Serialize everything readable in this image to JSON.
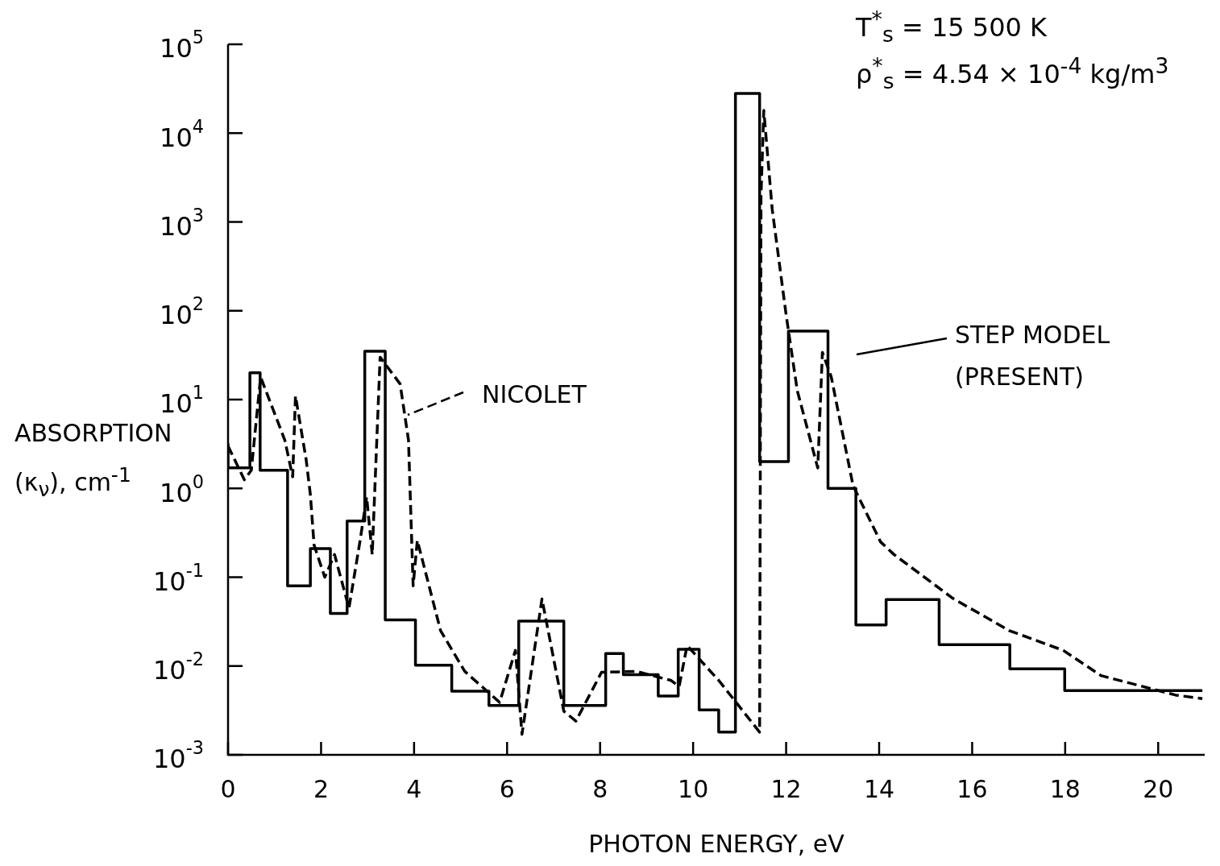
{
  "chart_data": {
    "type": "step",
    "xlabel": "PHOTON ENERGY, eV",
    "ylabel": "ABSORPTION (κ$_{ν}$), cm$^{-1}$",
    "annotations": [
      "T$^{*}$$_{s}$ = 15 500  K",
      "ρ$^{*}$$_{s}$ = 4.54 × 10$^{-4}$ kg/m$^{3}$"
    ],
    "log": "y",
    "grid": false,
    "legend": "right",
    "marker": "none",
    "xlim": [
      0,
      21
    ],
    "xticks": [
      0,
      2,
      4,
      6,
      8,
      10,
      12,
      14,
      16,
      18,
      20
    ],
    "ylim": [
      0.001,
      100000
    ],
    "yticks": [
      {
        "value": 0.001,
        "label": "10$^{-3}$"
      },
      {
        "value": 0.01,
        "label": "10$^{-2}$"
      },
      {
        "value": 0.1,
        "label": "10$^{-1}$"
      },
      {
        "value": 1,
        "label": "10$^{0}$"
      },
      {
        "value": 10,
        "label": "10$^{1}$"
      },
      {
        "value": 100,
        "label": "10$^{2}$"
      },
      {
        "value": 1000,
        "label": "10$^{3}$"
      },
      {
        "value": 10000,
        "label": "10$^{4}$"
      },
      {
        "value": 100000,
        "label": "10$^{5}$"
      }
    ],
    "series": [
      {
        "name": "STEP MODEL (PRESENT)",
        "type": "step",
        "color": "#000000",
        "line_style": "solid",
        "x": [
          0,
          0.47,
          0.69,
          1.28,
          1.77,
          2.2,
          2.56,
          2.94,
          3.38,
          4.03,
          4.81,
          5.61,
          6.25,
          7.22,
          8.12,
          8.5,
          9.25,
          9.68,
          10.13,
          10.55,
          10.91,
          11.43,
          12.05,
          12.9,
          13.5,
          14.15,
          15.29,
          16.81,
          17.99,
          18.72,
          20.95
        ],
        "values": [
          3.2,
          1.7,
          20,
          1.6,
          0.08,
          0.21,
          0.039,
          0.43,
          35,
          0.033,
          0.0102,
          0.0052,
          0.0036,
          0.032,
          0.0036,
          0.0138,
          0.008,
          0.0046,
          0.0154,
          0.0032,
          0.0018,
          28000,
          2.0,
          59,
          1.0,
          0.029,
          0.056,
          0.0174,
          0.0093,
          0.0053,
          0.0053
        ]
      },
      {
        "name": "NICOLET",
        "type": "line",
        "color": "#000000",
        "line_style": "dashed",
        "x": [
          0,
          0.35,
          0.5,
          0.7,
          1.22,
          1.39,
          1.45,
          1.68,
          1.77,
          1.85,
          2.08,
          2.29,
          2.6,
          2.84,
          2.98,
          3.1,
          3.27,
          3.7,
          3.88,
          3.98,
          4.07,
          4.57,
          5.09,
          5.84,
          6.18,
          6.32,
          6.75,
          7.22,
          7.48,
          8.03,
          8.78,
          9.52,
          9.7,
          9.87,
          10.56,
          11.43,
          11.46,
          11.52,
          11.7,
          12.0,
          12.24,
          12.68,
          12.78,
          12.97,
          13.44,
          14.03,
          14.32,
          15.58,
          16.8,
          17.96,
          18.77,
          20.38,
          20.95
        ],
        "values": [
          3.0,
          1.25,
          1.6,
          18,
          3.5,
          1.35,
          11,
          2.1,
          0.85,
          0.23,
          0.1,
          0.18,
          0.045,
          0.26,
          0.8,
          0.18,
          30,
          15,
          3.5,
          0.08,
          0.26,
          0.025,
          0.0087,
          0.0039,
          0.015,
          0.0017,
          0.057,
          0.0031,
          0.0024,
          0.0085,
          0.0087,
          0.0069,
          0.0059,
          0.017,
          0.0068,
          0.0018,
          2000,
          18000,
          1400,
          90,
          12.6,
          1.7,
          34,
          18,
          1.07,
          0.25,
          0.18,
          0.058,
          0.025,
          0.015,
          0.0078,
          0.0047,
          0.0043
        ]
      }
    ]
  }
}
